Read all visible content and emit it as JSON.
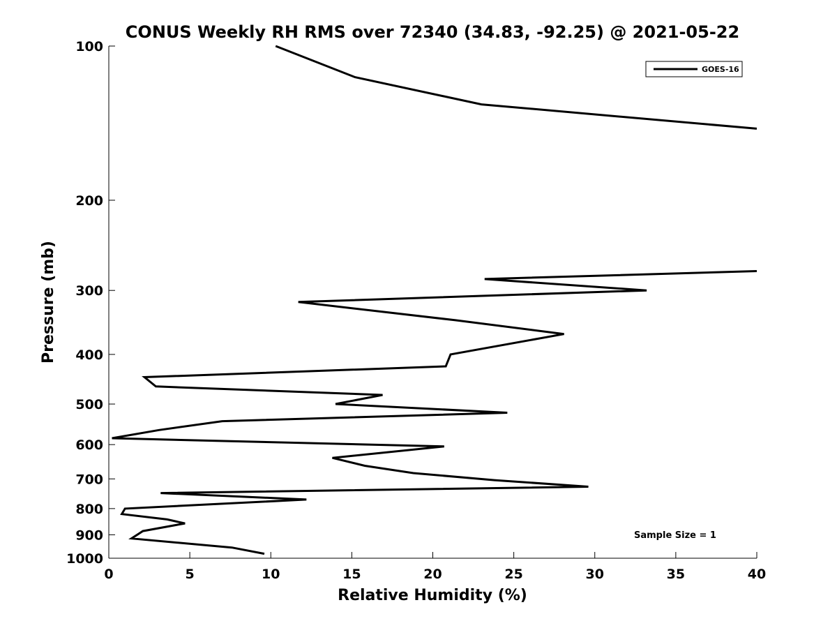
{
  "chart_data": {
    "type": "line",
    "title": "CONUS Weekly RH RMS over 72340 (34.83, -92.25) @ 2021-05-22",
    "xlabel": "Relative Humidity (%)",
    "ylabel": "Pressure (mb)",
    "xlim": [
      0,
      40
    ],
    "ylim": [
      100,
      1000
    ],
    "y_scale": "log",
    "y_reversed": true,
    "x_ticks": [
      0,
      5,
      10,
      15,
      20,
      25,
      30,
      35,
      40
    ],
    "y_ticks": [
      100,
      200,
      300,
      400,
      500,
      600,
      700,
      800,
      900,
      1000
    ],
    "grid": false,
    "legend_position": "top-right",
    "annotation": "Sample Size = 1",
    "series": [
      {
        "name": "GOES-16",
        "color": "#000000",
        "segments": [
          [
            {
              "x": 10.3,
              "y": 100
            },
            {
              "x": 15.2,
              "y": 115
            },
            {
              "x": 23.0,
              "y": 130
            },
            {
              "x": 40.0,
              "y": 145
            }
          ],
          [
            {
              "x": 40.0,
              "y": 275
            },
            {
              "x": 23.2,
              "y": 285
            },
            {
              "x": 33.2,
              "y": 300
            },
            {
              "x": 11.7,
              "y": 316
            },
            {
              "x": 21.4,
              "y": 343
            },
            {
              "x": 28.1,
              "y": 365
            },
            {
              "x": 21.1,
              "y": 400
            },
            {
              "x": 20.8,
              "y": 422
            },
            {
              "x": 2.2,
              "y": 443
            },
            {
              "x": 2.9,
              "y": 462
            },
            {
              "x": 16.9,
              "y": 480
            },
            {
              "x": 14.0,
              "y": 500
            },
            {
              "x": 24.6,
              "y": 520
            },
            {
              "x": 7.0,
              "y": 540
            },
            {
              "x": 3.1,
              "y": 562
            },
            {
              "x": 0.2,
              "y": 583
            },
            {
              "x": 20.7,
              "y": 605
            },
            {
              "x": 13.8,
              "y": 637
            },
            {
              "x": 15.8,
              "y": 660
            },
            {
              "x": 18.8,
              "y": 682
            },
            {
              "x": 23.8,
              "y": 704
            },
            {
              "x": 29.6,
              "y": 725
            },
            {
              "x": 3.2,
              "y": 746
            },
            {
              "x": 12.2,
              "y": 768
            },
            {
              "x": 1.0,
              "y": 800
            },
            {
              "x": 0.8,
              "y": 820
            },
            {
              "x": 3.6,
              "y": 840
            },
            {
              "x": 4.7,
              "y": 855
            },
            {
              "x": 2.1,
              "y": 885
            },
            {
              "x": 1.4,
              "y": 915
            },
            {
              "x": 7.6,
              "y": 953
            },
            {
              "x": 9.6,
              "y": 980
            }
          ]
        ]
      }
    ]
  }
}
